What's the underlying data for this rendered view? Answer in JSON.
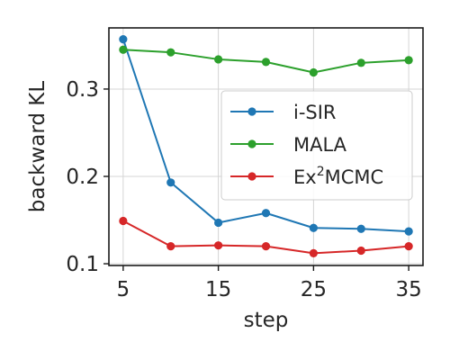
{
  "chart_data": {
    "type": "line",
    "title": "",
    "xlabel": "step",
    "ylabel": "backward KL",
    "x": [
      5,
      10,
      15,
      20,
      25,
      30,
      35
    ],
    "xticks": [
      5,
      15,
      25,
      35
    ],
    "yticks": [
      0.1,
      0.2,
      0.3
    ],
    "xtick_labels": [
      "5",
      "15",
      "25",
      "35"
    ],
    "ytick_labels": [
      "0.1",
      "0.2",
      "0.3"
    ],
    "xlim": [
      3.5,
      36.5
    ],
    "ylim": [
      0.098,
      0.37
    ],
    "grid": true,
    "legend_position": "center-right",
    "series": [
      {
        "name": "i-SIR",
        "color": "#1f77b4",
        "values": [
          0.357,
          0.193,
          0.147,
          0.158,
          0.141,
          0.14,
          0.137
        ]
      },
      {
        "name": "MALA",
        "color": "#2ca02c",
        "values": [
          0.345,
          0.342,
          0.334,
          0.331,
          0.319,
          0.33,
          0.333
        ]
      },
      {
        "name": "Ex²MCMC",
        "name_base": "Ex",
        "name_sup": "2",
        "name_rest": "MCMC",
        "color": "#d62728",
        "values": [
          0.149,
          0.12,
          0.121,
          0.12,
          0.112,
          0.115,
          0.12
        ]
      }
    ]
  }
}
